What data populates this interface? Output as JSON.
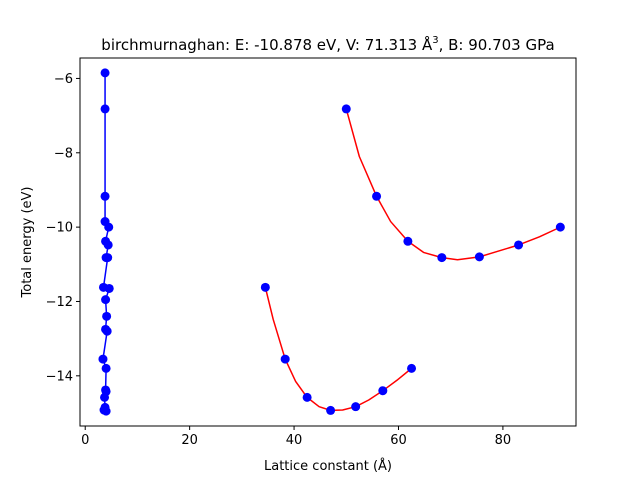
{
  "chart_data": {
    "type": "scatter",
    "title_prefix": "birchmurnaghan: E: -10.878 eV, V: 71.313 Å",
    "title_sup": "3",
    "title_suffix": ", B: 90.703 GPa",
    "xlabel": "Lattice constant (Å)",
    "ylabel": "Total energy (eV)",
    "xlim": [
      -1,
      94
    ],
    "ylim": [
      -15.35,
      -5.45
    ],
    "x_ticks": [
      0,
      20,
      40,
      60,
      80
    ],
    "y_ticks": [
      -14,
      -12,
      -10,
      -8,
      -6
    ],
    "grid": false,
    "colors": {
      "line": "#0000ff",
      "marker": "#0000ff",
      "fit": "#ff0000",
      "axes": "#000000"
    },
    "series": [
      {
        "style": "line+markers",
        "color": "#0000ff",
        "points": [
          [
            3.8,
            -5.85
          ],
          [
            3.8,
            -6.82
          ],
          [
            3.8,
            -9.17
          ],
          [
            3.8,
            -9.85
          ],
          [
            4.5,
            -10.0
          ],
          [
            3.9,
            -10.38
          ],
          [
            4.4,
            -10.48
          ],
          [
            4.0,
            -10.82
          ],
          [
            4.3,
            -10.82
          ],
          [
            3.5,
            -11.62
          ],
          [
            4.6,
            -11.65
          ],
          [
            3.9,
            -11.95
          ],
          [
            4.1,
            -12.4
          ],
          [
            3.9,
            -12.75
          ],
          [
            4.2,
            -12.8
          ],
          [
            3.4,
            -13.55
          ],
          [
            4.0,
            -13.8
          ],
          [
            3.9,
            -14.38
          ],
          [
            4.0,
            -14.42
          ],
          [
            3.7,
            -14.58
          ],
          [
            3.8,
            -14.85
          ],
          [
            3.6,
            -14.92
          ],
          [
            4.0,
            -14.95
          ]
        ]
      },
      {
        "style": "markers",
        "color": "#0000ff",
        "points": [
          [
            34.5,
            -11.62
          ],
          [
            38.3,
            -13.55
          ],
          [
            42.5,
            -14.58
          ],
          [
            47.0,
            -14.93
          ],
          [
            51.8,
            -14.83
          ],
          [
            57.0,
            -14.4
          ],
          [
            62.5,
            -13.8
          ]
        ]
      },
      {
        "style": "fit",
        "color": "#ff0000",
        "points": [
          [
            34.5,
            -11.62
          ],
          [
            36.0,
            -12.48
          ],
          [
            38.3,
            -13.55
          ],
          [
            40.3,
            -14.15
          ],
          [
            42.5,
            -14.58
          ],
          [
            44.8,
            -14.83
          ],
          [
            47.0,
            -14.93
          ],
          [
            49.3,
            -14.92
          ],
          [
            51.8,
            -14.83
          ],
          [
            54.3,
            -14.65
          ],
          [
            57.0,
            -14.4
          ],
          [
            59.7,
            -14.12
          ],
          [
            62.5,
            -13.8
          ]
        ]
      },
      {
        "style": "markers",
        "color": "#0000ff",
        "points": [
          [
            50.0,
            -6.82
          ],
          [
            55.8,
            -9.17
          ],
          [
            61.8,
            -10.38
          ],
          [
            68.3,
            -10.82
          ],
          [
            75.5,
            -10.8
          ],
          [
            83.0,
            -10.48
          ],
          [
            91.0,
            -10.0
          ]
        ]
      },
      {
        "style": "fit",
        "color": "#ff0000",
        "points": [
          [
            50.0,
            -6.82
          ],
          [
            52.5,
            -8.1
          ],
          [
            55.8,
            -9.17
          ],
          [
            58.5,
            -9.85
          ],
          [
            61.8,
            -10.38
          ],
          [
            64.8,
            -10.68
          ],
          [
            68.3,
            -10.82
          ],
          [
            71.3,
            -10.878
          ],
          [
            75.5,
            -10.8
          ],
          [
            79.0,
            -10.65
          ],
          [
            83.0,
            -10.48
          ],
          [
            87.0,
            -10.26
          ],
          [
            91.0,
            -10.0
          ]
        ]
      }
    ]
  }
}
